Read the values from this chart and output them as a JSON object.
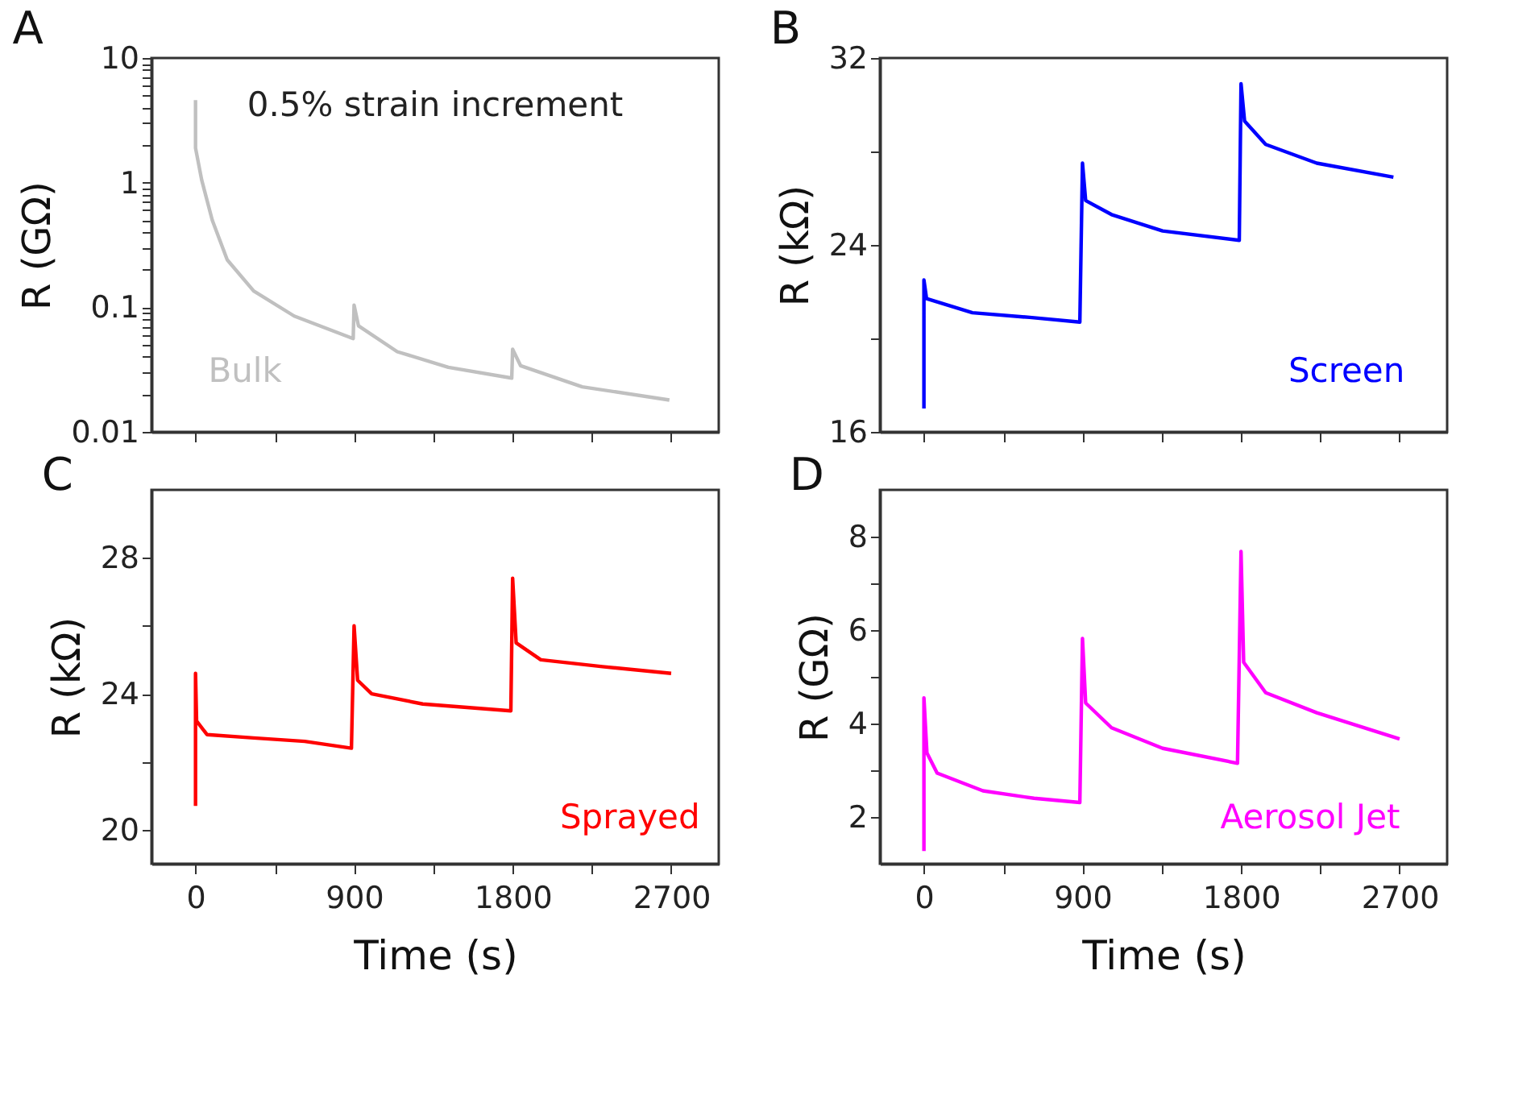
{
  "chart_data": [
    {
      "type": "line",
      "title": "A",
      "ylabel": "R (GΩ)",
      "log": true,
      "annotations": [
        "0.5% strain increment"
      ],
      "tick_labels": "y",
      "xlim": [
        -250,
        2970
      ],
      "xticks": [
        0,
        {
          "value": 450,
          "label": null
        },
        900,
        {
          "value": 1350,
          "label": null
        },
        1800,
        {
          "value": 2250,
          "label": null
        },
        2700
      ],
      "ylim": [
        0.01,
        10
      ],
      "yticks": [
        0.01,
        {
          "value": 0.02,
          "label": null
        },
        {
          "value": 0.03,
          "label": null
        },
        {
          "value": 0.04,
          "label": null
        },
        {
          "value": 0.05,
          "label": null
        },
        {
          "value": 0.06,
          "label": null
        },
        {
          "value": 0.07,
          "label": null
        },
        {
          "value": 0.08,
          "label": null
        },
        {
          "value": 0.09,
          "label": null
        },
        0.1,
        {
          "value": 0.2,
          "label": null
        },
        {
          "value": 0.3,
          "label": null
        },
        {
          "value": 0.4,
          "label": null
        },
        {
          "value": 0.5,
          "label": null
        },
        {
          "value": 0.6,
          "label": null
        },
        {
          "value": 0.7,
          "label": null
        },
        {
          "value": 0.8,
          "label": null
        },
        {
          "value": 0.9,
          "label": null
        },
        1,
        {
          "value": 2,
          "label": null
        },
        {
          "value": 3,
          "label": null
        },
        {
          "value": 4,
          "label": null
        },
        {
          "value": 5,
          "label": null
        },
        {
          "value": 6,
          "label": null
        },
        {
          "value": 7,
          "label": null
        },
        {
          "value": 8,
          "label": null
        },
        {
          "value": 9,
          "label": null
        },
        10
      ],
      "x": [
        0,
        0,
        35,
        95,
        180,
        330,
        560,
        895,
        900,
        925,
        1145,
        1435,
        1795,
        1800,
        1845,
        2195,
        2690
      ],
      "series": [
        {
          "name": "Bulk",
          "color": "#c0c0c0",
          "values": [
            4.6,
            1.9,
            1.05,
            0.5,
            0.24,
            0.135,
            0.085,
            0.056,
            0.104,
            0.071,
            0.044,
            0.033,
            0.027,
            0.046,
            0.034,
            0.023,
            0.018
          ]
        }
      ]
    },
    {
      "type": "line",
      "title": "B",
      "ylabel": "R (kΩ)",
      "tick_labels": "y",
      "xlim": [
        -250,
        2970
      ],
      "xticks": [
        0,
        {
          "value": 450,
          "label": null
        },
        900,
        {
          "value": 1350,
          "label": null
        },
        1800,
        {
          "value": 2250,
          "label": null
        },
        2700
      ],
      "ylim": [
        16,
        32
      ],
      "yticks": [
        16,
        {
          "value": 20,
          "label": null
        },
        24,
        {
          "value": 28,
          "label": null
        },
        32
      ],
      "x": [
        0,
        0,
        15,
        275,
        600,
        885,
        900,
        918,
        1065,
        1355,
        1790,
        1800,
        1820,
        1940,
        2230,
        2665
      ],
      "series": [
        {
          "name": "Screen",
          "color": "#0000ff",
          "values": [
            17.0,
            22.5,
            21.7,
            21.1,
            20.9,
            20.7,
            27.5,
            25.9,
            25.3,
            24.6,
            24.2,
            30.9,
            29.3,
            28.3,
            27.5,
            26.9
          ]
        }
      ]
    },
    {
      "type": "line",
      "title": "C",
      "xlabel": "Time (s)",
      "ylabel": "R (kΩ)",
      "xlim": [
        -250,
        2970
      ],
      "xticks": [
        0,
        {
          "value": 450,
          "label": null
        },
        900,
        {
          "value": 1350,
          "label": null
        },
        1800,
        {
          "value": 2250,
          "label": null
        },
        2700
      ],
      "ylim": [
        19,
        30
      ],
      "yticks": [
        20,
        {
          "value": 22,
          "label": null
        },
        24,
        {
          "value": 26,
          "label": null
        },
        28
      ],
      "x": [
        0,
        0,
        6,
        65,
        330,
        620,
        885,
        900,
        920,
        1000,
        1290,
        1790,
        1800,
        1820,
        1960,
        2310,
        2700
      ],
      "series": [
        {
          "name": "Sprayed",
          "color": "#ff0000",
          "values": [
            20.7,
            24.6,
            23.2,
            22.8,
            22.7,
            22.6,
            22.4,
            26.0,
            24.4,
            24.0,
            23.7,
            23.5,
            27.4,
            25.5,
            25.0,
            24.8,
            24.6
          ]
        }
      ]
    },
    {
      "type": "line",
      "title": "D",
      "xlabel": "Time (s)",
      "ylabel": "R (GΩ)",
      "xlim": [
        -250,
        2970
      ],
      "xticks": [
        0,
        {
          "value": 450,
          "label": null
        },
        900,
        {
          "value": 1350,
          "label": null
        },
        1800,
        {
          "value": 2250,
          "label": null
        },
        2700
      ],
      "ylim": [
        1,
        9
      ],
      "yticks": [
        2,
        {
          "value": 3,
          "label": null
        },
        4,
        {
          "value": 5,
          "label": null
        },
        6,
        {
          "value": 7,
          "label": null
        },
        8
      ],
      "x": [
        0,
        0,
        17,
        75,
        335,
        625,
        885,
        900,
        918,
        1065,
        1355,
        1780,
        1800,
        1815,
        1940,
        2230,
        2700
      ],
      "series": [
        {
          "name": "Aerosol Jet",
          "color": "#ff00ff",
          "values": [
            1.27,
            4.55,
            3.37,
            2.94,
            2.56,
            2.4,
            2.31,
            5.82,
            4.44,
            3.91,
            3.47,
            3.15,
            7.68,
            5.31,
            4.66,
            4.23,
            3.67
          ]
        }
      ]
    }
  ]
}
